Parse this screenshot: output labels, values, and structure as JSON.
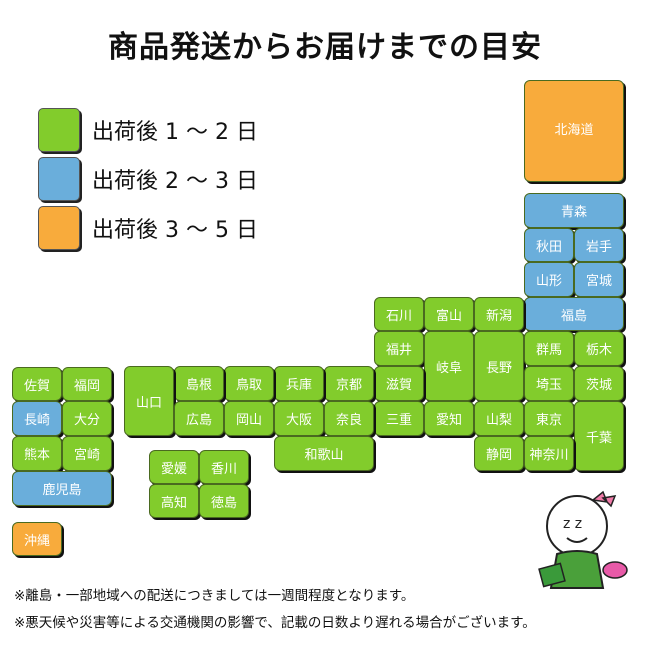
{
  "title": "商品発送からお届けまでの目安",
  "colors": {
    "fast": "#82cc2c",
    "mid": "#6aaedb",
    "slow": "#f8ab3c"
  },
  "legend": [
    {
      "key": "fast",
      "label": "出荷後 1 〜 2 日"
    },
    {
      "key": "mid",
      "label": "出荷後 2 〜 3 日"
    },
    {
      "key": "slow",
      "label": "出荷後 3 〜 5 日"
    }
  ],
  "prefectures": [
    {
      "name": "北海道",
      "cat": "slow"
    },
    {
      "name": "青森",
      "cat": "mid"
    },
    {
      "name": "秋田",
      "cat": "mid"
    },
    {
      "name": "岩手",
      "cat": "mid"
    },
    {
      "name": "山形",
      "cat": "mid"
    },
    {
      "name": "宮城",
      "cat": "mid"
    },
    {
      "name": "福島",
      "cat": "mid"
    },
    {
      "name": "石川",
      "cat": "fast"
    },
    {
      "name": "富山",
      "cat": "fast"
    },
    {
      "name": "新潟",
      "cat": "fast"
    },
    {
      "name": "福井",
      "cat": "fast"
    },
    {
      "name": "岐阜",
      "cat": "fast"
    },
    {
      "name": "長野",
      "cat": "fast"
    },
    {
      "name": "群馬",
      "cat": "fast"
    },
    {
      "name": "栃木",
      "cat": "fast"
    },
    {
      "name": "滋賀",
      "cat": "fast"
    },
    {
      "name": "埼玉",
      "cat": "fast"
    },
    {
      "name": "茨城",
      "cat": "fast"
    },
    {
      "name": "三重",
      "cat": "fast"
    },
    {
      "name": "愛知",
      "cat": "fast"
    },
    {
      "name": "山梨",
      "cat": "fast"
    },
    {
      "name": "東京",
      "cat": "fast"
    },
    {
      "name": "千葉",
      "cat": "fast"
    },
    {
      "name": "静岡",
      "cat": "fast"
    },
    {
      "name": "神奈川",
      "cat": "fast"
    },
    {
      "name": "京都",
      "cat": "fast"
    },
    {
      "name": "兵庫",
      "cat": "fast"
    },
    {
      "name": "鳥取",
      "cat": "fast"
    },
    {
      "name": "島根",
      "cat": "fast"
    },
    {
      "name": "山口",
      "cat": "fast"
    },
    {
      "name": "広島",
      "cat": "fast"
    },
    {
      "name": "岡山",
      "cat": "fast"
    },
    {
      "name": "大阪",
      "cat": "fast"
    },
    {
      "name": "奈良",
      "cat": "fast"
    },
    {
      "name": "和歌山",
      "cat": "fast"
    },
    {
      "name": "愛媛",
      "cat": "fast"
    },
    {
      "name": "香川",
      "cat": "fast"
    },
    {
      "name": "高知",
      "cat": "fast"
    },
    {
      "name": "徳島",
      "cat": "fast"
    },
    {
      "name": "佐賀",
      "cat": "fast"
    },
    {
      "name": "福岡",
      "cat": "fast"
    },
    {
      "name": "長崎",
      "cat": "mid"
    },
    {
      "name": "大分",
      "cat": "fast"
    },
    {
      "name": "熊本",
      "cat": "fast"
    },
    {
      "name": "宮崎",
      "cat": "fast"
    },
    {
      "name": "鹿児島",
      "cat": "mid"
    },
    {
      "name": "沖縄",
      "cat": "slow"
    }
  ],
  "notes": [
    "※離島・一部地域への配送につきましては一週間程度となります。",
    "※悪天候や災害等による交通機関の影響で、記載の日数より遅れる場合がございます。"
  ]
}
